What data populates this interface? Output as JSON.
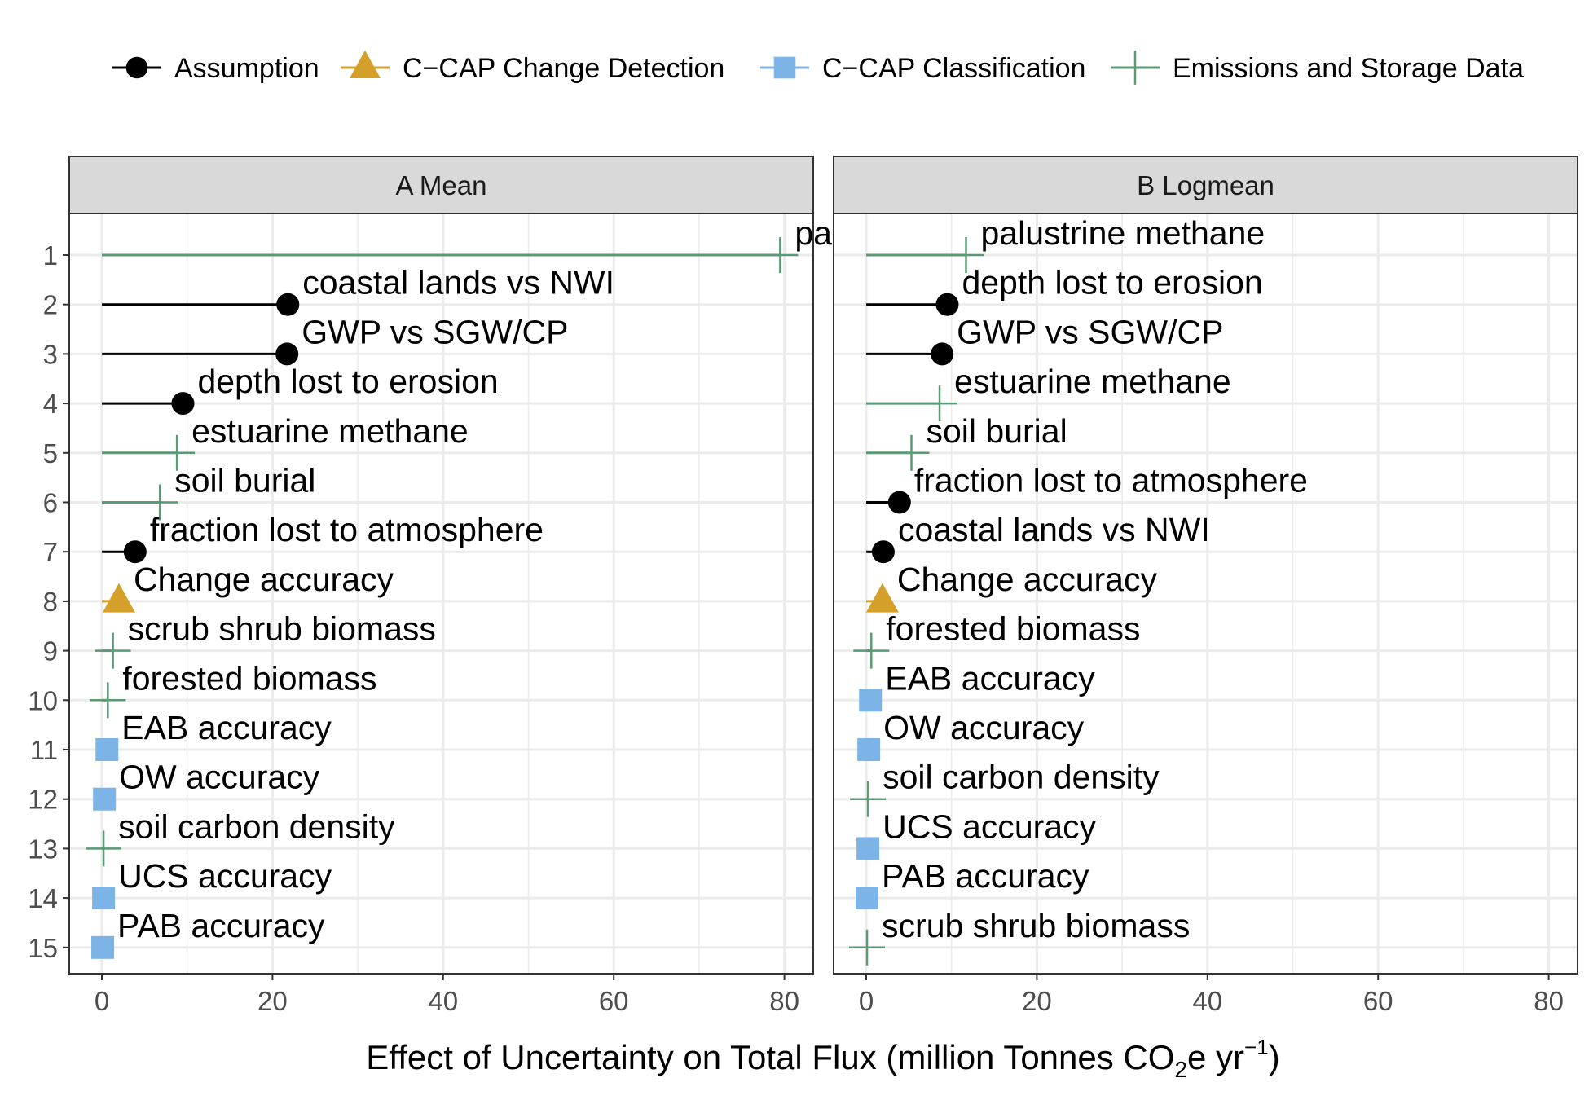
{
  "colors": {
    "Assumption": "#000000",
    "C-CAP Change Detection": "#D4A02A",
    "C-CAP Classification": "#7DB4E8",
    "Emissions and Storage Data": "#5A9A74",
    "strip": "#D9D9D9",
    "grid": "#EBEBEB"
  },
  "legend": [
    {
      "label": "Assumption",
      "shape": "circle"
    },
    {
      "label": "C−CAP Change Detection",
      "shape": "triangle"
    },
    {
      "label": "C−CAP Classification",
      "shape": "square"
    },
    {
      "label": "Emissions and Storage Data",
      "shape": "plus"
    }
  ],
  "chart_data": {
    "type": "scatter",
    "xlabel_parts": [
      "Effect of Uncertainty on Total Flux (million Tonnes CO",
      "2",
      "e yr",
      "−1",
      ")"
    ],
    "xlim": [
      0,
      80
    ],
    "x_ticks": [
      "0",
      "20",
      "40",
      "60",
      "80"
    ],
    "y_ticks": [
      "1",
      "2",
      "3",
      "4",
      "5",
      "6",
      "7",
      "8",
      "9",
      "10",
      "11",
      "12",
      "13",
      "14",
      "15"
    ],
    "grid": true,
    "legend_position": "top",
    "panels": [
      {
        "title": "A Mean",
        "points": [
          {
            "rank": 1,
            "label": "palustrine methane",
            "value": 79.5,
            "category": "Emissions and Storage Data"
          },
          {
            "rank": 2,
            "label": "coastal lands vs NWI",
            "value": 21.8,
            "category": "Assumption"
          },
          {
            "rank": 3,
            "label": "GWP vs SGW/CP",
            "value": 21.7,
            "category": "Assumption"
          },
          {
            "rank": 4,
            "label": "depth lost to erosion",
            "value": 9.5,
            "category": "Assumption"
          },
          {
            "rank": 5,
            "label": "estuarine methane",
            "value": 8.8,
            "category": "Emissions and Storage Data"
          },
          {
            "rank": 6,
            "label": "soil burial",
            "value": 6.8,
            "category": "Emissions and Storage Data"
          },
          {
            "rank": 7,
            "label": "fraction lost to atmosphere",
            "value": 3.9,
            "category": "Assumption"
          },
          {
            "rank": 8,
            "label": "Change accuracy",
            "value": 2.0,
            "category": "C-CAP Change Detection"
          },
          {
            "rank": 9,
            "label": "scrub shrub biomass",
            "value": 1.3,
            "category": "Emissions and Storage Data"
          },
          {
            "rank": 10,
            "label": "forested biomass",
            "value": 0.7,
            "category": "Emissions and Storage Data"
          },
          {
            "rank": 11,
            "label": "EAB accuracy",
            "value": 0.6,
            "category": "C-CAP Classification"
          },
          {
            "rank": 12,
            "label": "OW accuracy",
            "value": 0.3,
            "category": "C-CAP Classification"
          },
          {
            "rank": 13,
            "label": "soil carbon density",
            "value": 0.2,
            "category": "Emissions and Storage Data"
          },
          {
            "rank": 14,
            "label": "UCS accuracy",
            "value": 0.2,
            "category": "C-CAP Classification"
          },
          {
            "rank": 15,
            "label": "PAB accuracy",
            "value": 0.1,
            "category": "C-CAP Classification"
          }
        ]
      },
      {
        "title": "B Logmean",
        "points": [
          {
            "rank": 1,
            "label": "palustrine methane",
            "value": 11.7,
            "category": "Emissions and Storage Data"
          },
          {
            "rank": 2,
            "label": "depth lost to erosion",
            "value": 9.5,
            "category": "Assumption"
          },
          {
            "rank": 3,
            "label": "GWP vs SGW/CP",
            "value": 8.9,
            "category": "Assumption"
          },
          {
            "rank": 4,
            "label": "estuarine methane",
            "value": 8.6,
            "category": "Emissions and Storage Data"
          },
          {
            "rank": 5,
            "label": "soil burial",
            "value": 5.3,
            "category": "Emissions and Storage Data"
          },
          {
            "rank": 6,
            "label": "fraction lost to atmosphere",
            "value": 3.9,
            "category": "Assumption"
          },
          {
            "rank": 7,
            "label": "coastal lands vs NWI",
            "value": 2.0,
            "category": "Assumption"
          },
          {
            "rank": 8,
            "label": "Change accuracy",
            "value": 1.9,
            "category": "C-CAP Change Detection"
          },
          {
            "rank": 9,
            "label": "forested biomass",
            "value": 0.6,
            "category": "Emissions and Storage Data"
          },
          {
            "rank": 10,
            "label": "EAB accuracy",
            "value": 0.5,
            "category": "C-CAP Classification"
          },
          {
            "rank": 11,
            "label": "OW accuracy",
            "value": 0.3,
            "category": "C-CAP Classification"
          },
          {
            "rank": 12,
            "label": "soil carbon density",
            "value": 0.2,
            "category": "Emissions and Storage Data"
          },
          {
            "rank": 13,
            "label": "UCS accuracy",
            "value": 0.2,
            "category": "C-CAP Classification"
          },
          {
            "rank": 14,
            "label": "PAB accuracy",
            "value": 0.1,
            "category": "C-CAP Classification"
          },
          {
            "rank": 15,
            "label": "scrub shrub biomass",
            "value": 0.1,
            "category": "Emissions and Storage Data"
          }
        ]
      }
    ]
  }
}
